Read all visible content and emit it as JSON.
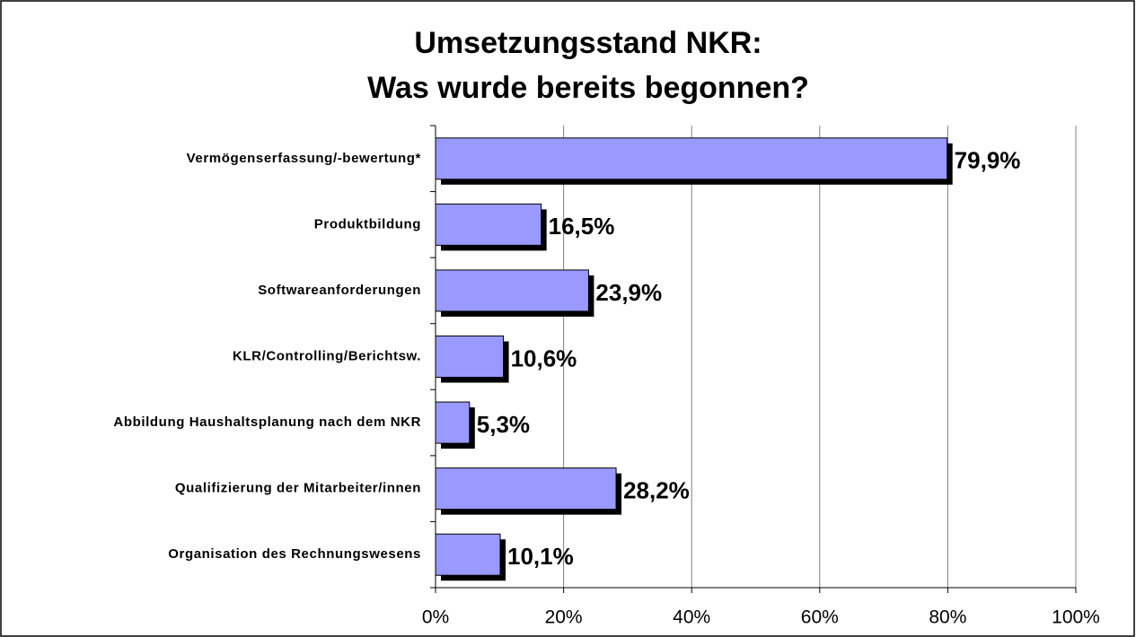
{
  "chart_data": {
    "type": "bar",
    "orientation": "horizontal",
    "title": [
      "Umsetzungsstand NKR:",
      "Was wurde bereits begonnen?"
    ],
    "categories": [
      "Vermögenserfassung/-bewertung*",
      "Produktbildung",
      "Softwareanforderungen",
      "KLR/Controlling/Berichtsw.",
      "Abbildung Haushaltsplanung nach dem NKR",
      "Qualifizierung der Mitarbeiter/innen",
      "Organisation des Rechnungswesens"
    ],
    "values": [
      79.9,
      16.5,
      23.9,
      10.6,
      5.3,
      28.2,
      10.1
    ],
    "value_labels": [
      "79,9%",
      "16,5%",
      "23,9%",
      "10,6%",
      "5,3%",
      "28,2%",
      "10,1%"
    ],
    "color": "#9999ff",
    "xlim": [
      0,
      100
    ],
    "xticks": [
      {
        "value": 0,
        "label": "0%"
      },
      {
        "value": 20,
        "label": "20%"
      },
      {
        "value": 40,
        "label": "40%"
      },
      {
        "value": 60,
        "label": "60%"
      },
      {
        "value": 80,
        "label": "80%"
      },
      {
        "value": 100,
        "label": "100%"
      }
    ],
    "grid": true
  }
}
